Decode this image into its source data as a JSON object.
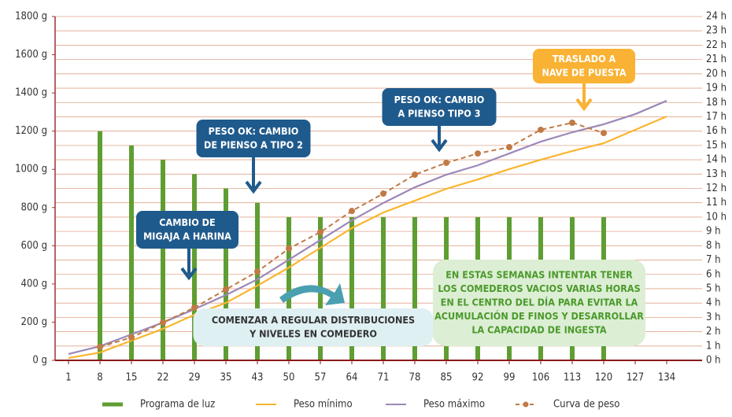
{
  "chart_data": {
    "type": "line",
    "categories": [
      1,
      8,
      15,
      22,
      29,
      35,
      43,
      50,
      57,
      64,
      71,
      78,
      85,
      92,
      99,
      106,
      113,
      120,
      127,
      134
    ],
    "ylim": [
      0,
      1800
    ],
    "yticks": [
      {
        "value": 0,
        "label": "0 g"
      },
      {
        "value": 200,
        "label": "200 g"
      },
      {
        "value": 400,
        "label": "400 g"
      },
      {
        "value": 600,
        "label": "600 g"
      },
      {
        "value": 800,
        "label": "800 g"
      },
      {
        "value": 1000,
        "label": "1000 g"
      },
      {
        "value": 1200,
        "label": "1200 g"
      },
      {
        "value": 1400,
        "label": "1400 g"
      },
      {
        "value": 1600,
        "label": "1600 g"
      },
      {
        "value": 1800,
        "label": "1800 g"
      }
    ],
    "y2lim": [
      0,
      24
    ],
    "y2ticks": [
      {
        "value": 0,
        "label": "0 h"
      },
      {
        "value": 1,
        "label": "1 h"
      },
      {
        "value": 2,
        "label": "2 h"
      },
      {
        "value": 3,
        "label": "3 h"
      },
      {
        "value": 4,
        "label": "4 h"
      },
      {
        "value": 5,
        "label": "5 h"
      },
      {
        "value": 6,
        "label": "6 h"
      },
      {
        "value": 7,
        "label": "7 h"
      },
      {
        "value": 8,
        "label": "8 h"
      },
      {
        "value": 9,
        "label": "9 h"
      },
      {
        "value": 10,
        "label": "10 h"
      },
      {
        "value": 11,
        "label": "11 h"
      },
      {
        "value": 12,
        "label": "12 h"
      },
      {
        "value": 13,
        "label": "13 h"
      },
      {
        "value": 14,
        "label": "14 h"
      },
      {
        "value": 15,
        "label": "15 h"
      },
      {
        "value": 16,
        "label": "16 h"
      },
      {
        "value": 17,
        "label": "17 h"
      },
      {
        "value": 18,
        "label": "18 h"
      },
      {
        "value": 19,
        "label": "19 h"
      },
      {
        "value": 20,
        "label": "20 h"
      },
      {
        "value": 21,
        "label": "21 h"
      },
      {
        "value": 22,
        "label": "22 h"
      },
      {
        "value": 23,
        "label": "23 h"
      },
      {
        "value": 24,
        "label": "24 h"
      }
    ],
    "grid": true,
    "series": [
      {
        "name": "Programa de luz",
        "type": "bar",
        "axis": "y2",
        "color": "#5f9e33",
        "values": [
          null,
          16,
          15,
          14,
          13,
          12,
          11,
          10,
          10,
          10,
          10,
          10,
          10,
          10,
          10,
          10,
          10,
          10,
          null,
          null
        ]
      },
      {
        "name": "Peso mínimo",
        "type": "line",
        "color": "#f9b52e",
        "values": [
          12,
          41,
          103,
          165,
          239,
          301,
          391,
          486,
          589,
          692,
          774,
          836,
          898,
          947,
          1001,
          1050,
          1096,
          1137,
          1207,
          1277
        ]
      },
      {
        "name": "Peso máximo",
        "type": "line",
        "color": "#9c88b8",
        "values": [
          33,
          74,
          136,
          198,
          268,
          342,
          424,
          527,
          630,
          733,
          824,
          906,
          972,
          1021,
          1083,
          1145,
          1194,
          1236,
          1289,
          1359
        ]
      },
      {
        "name": "Curva de peso",
        "type": "dashed",
        "color": "#c07a45",
        "values": [
          null,
          70,
          120,
          198,
          276,
          371,
          465,
          585,
          671,
          782,
          873,
          972,
          1034,
          1083,
          1116,
          1207,
          1244,
          1190,
          null,
          null
        ]
      }
    ],
    "annotations": [
      {
        "lines": [
          "CAMBIO DE",
          "MIGAJA A HARINA"
        ]
      },
      {
        "lines": [
          "PESO OK: CAMBIO",
          "DE PIENSO A TIPO 2"
        ]
      },
      {
        "lines": [
          "PESO OK: CAMBIO",
          "A PIENSO TIPO 3"
        ]
      },
      {
        "lines": [
          "TRASLADO A",
          "NAVE DE PUESTA"
        ]
      },
      {
        "lines": [
          "COMENZAR A REGULAR DISTRIBUCIONES",
          "Y NIVELES EN COMEDERO"
        ]
      },
      {
        "lines": [
          "EN ESTAS SEMANAS INTENTAR TENER",
          "LOS COMEDEROS VACIOS VARIAS HORAS",
          "EN EL CENTRO DEL DÍA PARA EVITAR LA",
          "ACUMULACIÓN DE FINOS Y DESARROLLAR",
          "LA CAPACIDAD DE INGESTA"
        ]
      }
    ]
  }
}
